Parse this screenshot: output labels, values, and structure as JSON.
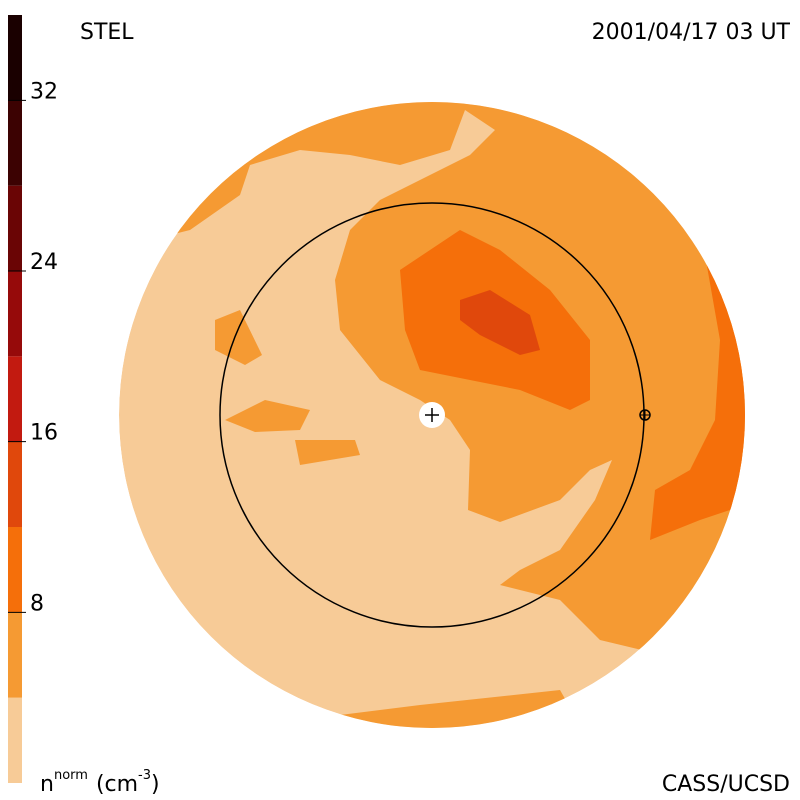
{
  "chart_data": {
    "type": "contour-map",
    "title_left": "STEL",
    "title_right": "2001/04/17 03 UT",
    "credit": "CASS/UCSD",
    "colorbar_label": {
      "base": "n",
      "sup": "norm",
      "unit": "(cm",
      "unit_sup": "-3",
      "close": ")"
    },
    "colorbar": {
      "levels": [
        0,
        4,
        8,
        12,
        16,
        20,
        24,
        28,
        32,
        36
      ],
      "colors": [
        "#f7cb97",
        "#f59a33",
        "#f56f0a",
        "#e0480c",
        "#c21a10",
        "#960a0a",
        "#6a0505",
        "#3c0202",
        "#1a0000"
      ],
      "lim": [
        0,
        36
      ],
      "ticks": [
        8,
        16,
        24,
        32
      ]
    }
  }
}
